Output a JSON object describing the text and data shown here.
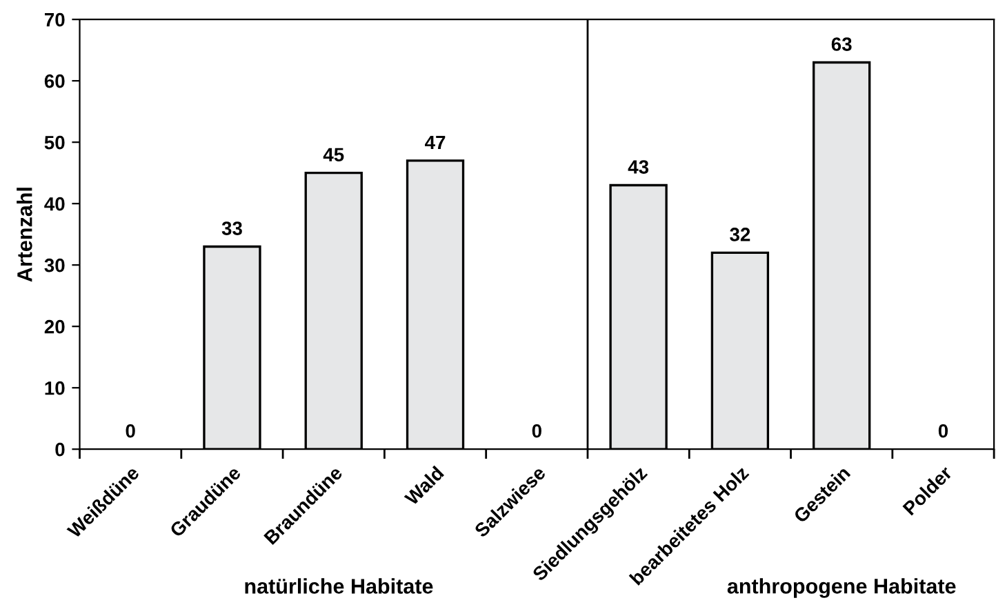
{
  "chart_data": {
    "type": "bar",
    "ylabel": "Artenzahl",
    "categories": [
      "Weißdüne",
      "Graudüne",
      "Braundüne",
      "Wald",
      "Salzwiese",
      "Siedlungsgehölz",
      "bearbeitetes Holz",
      "Gestein",
      "Polder"
    ],
    "values": [
      0,
      33,
      45,
      47,
      0,
      43,
      32,
      63,
      0
    ],
    "color": "#e6e7e8",
    "ylim": [
      0,
      70
    ],
    "yticks": [
      0,
      10,
      20,
      30,
      40,
      50,
      60,
      70
    ],
    "grid": false,
    "data_labels": true,
    "annotations": [
      "natürliche Habitate",
      "anthropogene Habitate"
    ]
  }
}
